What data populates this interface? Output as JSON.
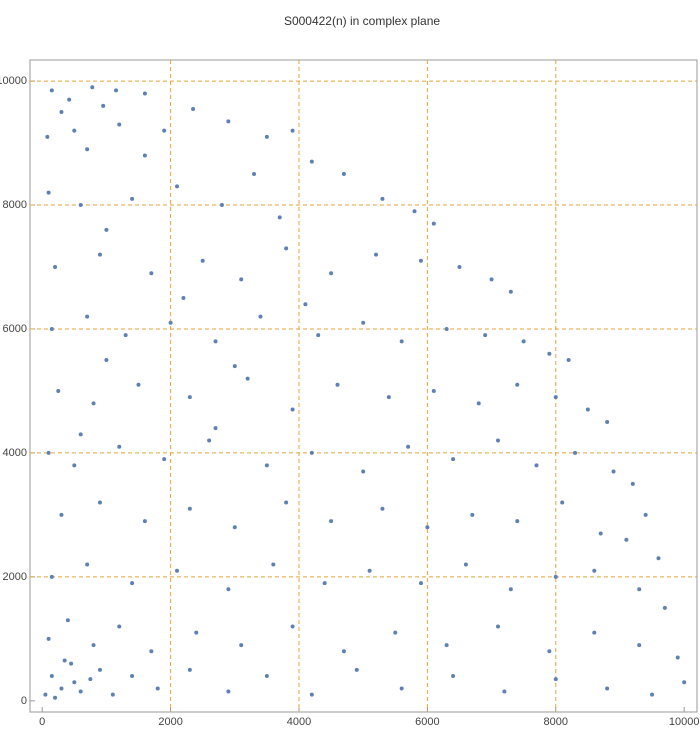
{
  "chart_data": {
    "type": "scatter",
    "title": "S000422(n) in complex plane",
    "x": [
      150,
      420,
      780,
      1150,
      1600,
      300,
      950,
      80,
      500,
      1200,
      1900,
      2350,
      2900,
      3500,
      3900,
      700,
      1600,
      100,
      600,
      1400,
      2100,
      2800,
      3300,
      4200,
      4700,
      5300,
      5800,
      6100,
      3700,
      1000,
      200,
      900,
      1700,
      2500,
      3100,
      3800,
      4500,
      5200,
      5900,
      6500,
      7000,
      7300,
      2200,
      4100,
      150,
      700,
      1300,
      2000,
      2700,
      3400,
      4300,
      5000,
      5600,
      6300,
      6900,
      7500,
      7900,
      8200,
      1000,
      3000,
      250,
      800,
      1500,
      2300,
      3200,
      3900,
      4600,
      5400,
      6100,
      6800,
      7400,
      8000,
      8500,
      8800,
      600,
      2700,
      100,
      500,
      1200,
      1900,
      2600,
      3500,
      4200,
      5000,
      5700,
      6400,
      7100,
      7700,
      8300,
      8900,
      9200,
      9400,
      300,
      900,
      1600,
      2300,
      3000,
      3800,
      4500,
      5300,
      6000,
      6700,
      7400,
      8100,
      8700,
      9600,
      9100,
      150,
      700,
      1400,
      2100,
      2900,
      3600,
      4400,
      5100,
      5900,
      6600,
      7300,
      8000,
      8600,
      9300,
      9700,
      100,
      400,
      800,
      1200,
      1700,
      2400,
      3100,
      3900,
      4700,
      5500,
      6300,
      7100,
      7900,
      8600,
      9300,
      9900,
      10000,
      50,
      150,
      300,
      450,
      600,
      750,
      900,
      1100,
      1400,
      1800,
      2300,
      2900,
      3500,
      4200,
      4900,
      5600,
      6400,
      7200,
      8000,
      8800,
      9500,
      200,
      500,
      350
    ],
    "values": [
      9850,
      9700,
      9900,
      9850,
      9800,
      9500,
      9600,
      9100,
      9200,
      9300,
      9200,
      9550,
      9350,
      9100,
      9200,
      8900,
      8800,
      8200,
      8000,
      8100,
      8300,
      8000,
      8500,
      8700,
      8500,
      8100,
      7900,
      7700,
      7800,
      7600,
      7000,
      7200,
      6900,
      7100,
      6800,
      7300,
      6900,
      7200,
      7100,
      7000,
      6800,
      6600,
      6500,
      6400,
      6000,
      6200,
      5900,
      6100,
      5800,
      6200,
      5900,
      6100,
      5800,
      6000,
      5900,
      5800,
      5600,
      5500,
      5500,
      5400,
      5000,
      4800,
      5100,
      4900,
      5200,
      4700,
      5100,
      4900,
      5000,
      4800,
      5100,
      4900,
      4700,
      4500,
      4300,
      4400,
      4000,
      3800,
      4100,
      3900,
      4200,
      3800,
      4000,
      3700,
      4100,
      3900,
      4200,
      3800,
      4000,
      3700,
      3500,
      3000,
      3000,
      3200,
      2900,
      3100,
      2800,
      3200,
      2900,
      3100,
      2800,
      3000,
      2900,
      3200,
      2700,
      2300,
      2600,
      2000,
      2200,
      1900,
      2100,
      1800,
      2200,
      1900,
      2100,
      1900,
      2200,
      1800,
      2000,
      2100,
      1800,
      1500,
      1000,
      1300,
      900,
      1200,
      800,
      1100,
      900,
      1200,
      800,
      1100,
      900,
      1200,
      800,
      1100,
      900,
      700,
      300,
      100,
      400,
      200,
      600,
      150,
      350,
      500,
      100,
      400,
      200,
      500,
      150,
      400,
      100,
      500,
      200,
      400,
      150,
      350,
      200,
      100,
      50,
      300,
      650
    ],
    "color": "#5e81b5",
    "grid": true,
    "grid_color": "#e8a33a",
    "xlim": [
      -190,
      10200
    ],
    "ylim": [
      -180,
      10340
    ],
    "xticks": [
      0,
      2000,
      4000,
      6000,
      8000,
      10000
    ],
    "yticks": [
      0,
      2000,
      4000,
      6000,
      8000,
      10000
    ]
  }
}
